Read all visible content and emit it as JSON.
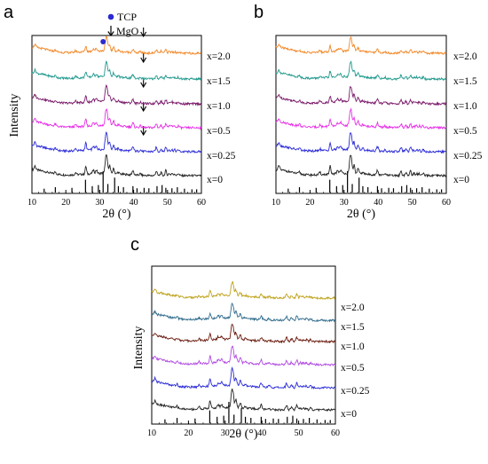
{
  "chart_data": [
    {
      "panel": "a",
      "type": "line",
      "xlabel": "2θ (°)",
      "ylabel": "Intensity",
      "xlim": [
        10,
        60
      ],
      "xticks": [
        "10",
        "20",
        "30",
        "40",
        "50",
        "60"
      ],
      "legend": [
        {
          "label": "TCP",
          "marker": "dot",
          "color": "#2a2ad0"
        },
        {
          "label": "MgO",
          "marker": "arrow",
          "color": "#000000"
        }
      ],
      "series": [
        {
          "name": "x=0",
          "color": "#222222"
        },
        {
          "name": "x=0.25",
          "color": "#2b2bd6"
        },
        {
          "name": "x=0.5",
          "color": "#e62ee6"
        },
        {
          "name": "x=1.0",
          "color": "#7a1a6a"
        },
        {
          "name": "x=1.5",
          "color": "#229a8e"
        },
        {
          "name": "x=2.0",
          "color": "#f2892a"
        }
      ],
      "tcp_marker_2theta": [
        31.0
      ],
      "mgo_marker_2theta": [
        42.9
      ]
    },
    {
      "panel": "b",
      "type": "line",
      "xlabel": "2θ (°)",
      "ylabel": "",
      "xlim": [
        10,
        60
      ],
      "xticks": [
        "10",
        "20",
        "30",
        "40",
        "50",
        "60"
      ],
      "series": [
        {
          "name": "x=0",
          "color": "#222222"
        },
        {
          "name": "x=0.25",
          "color": "#2b2bd6"
        },
        {
          "name": "x=0.5",
          "color": "#e62ee6"
        },
        {
          "name": "x=1.0",
          "color": "#7a1a6a"
        },
        {
          "name": "x=1.5",
          "color": "#229a8e"
        },
        {
          "name": "x=2.0",
          "color": "#f2892a"
        }
      ]
    },
    {
      "panel": "c",
      "type": "line",
      "xlabel": "2θ (°)",
      "ylabel": "Intensity",
      "xlim": [
        10,
        60
      ],
      "xticks": [
        "10",
        "20",
        "30",
        "40",
        "50",
        "60"
      ],
      "series": [
        {
          "name": "x=0",
          "color": "#222222"
        },
        {
          "name": "x=0.25",
          "color": "#2b2bd6"
        },
        {
          "name": "x=0.5",
          "color": "#b04ae0"
        },
        {
          "name": "x=1.0",
          "color": "#6a1a0e"
        },
        {
          "name": "x=1.5",
          "color": "#2f6b8c"
        },
        {
          "name": "x=2.0",
          "color": "#bfa21a"
        }
      ]
    }
  ],
  "reference_pattern": {
    "lines": [
      [
        13.6,
        0.18
      ],
      [
        16.9,
        0.25
      ],
      [
        21.8,
        0.22
      ],
      [
        25.8,
        0.6
      ],
      [
        27.8,
        0.3
      ],
      [
        29.6,
        0.35
      ],
      [
        31.0,
        1.0
      ],
      [
        32.4,
        0.4
      ],
      [
        34.4,
        0.7
      ],
      [
        35.5,
        0.3
      ],
      [
        37.0,
        0.25
      ],
      [
        39.8,
        0.3
      ],
      [
        41.0,
        0.2
      ],
      [
        43.1,
        0.22
      ],
      [
        44.5,
        0.2
      ],
      [
        46.9,
        0.3
      ],
      [
        48.4,
        0.35
      ],
      [
        49.5,
        0.22
      ],
      [
        51.3,
        0.2
      ],
      [
        52.9,
        0.25
      ],
      [
        55.0,
        0.18
      ],
      [
        57.2,
        0.15
      ],
      [
        58.6,
        0.15
      ]
    ]
  },
  "pattern_peaks": {
    "apatite_like": [
      [
        10.9,
        0.3,
        0.35
      ],
      [
        16.9,
        0.3,
        0.18
      ],
      [
        22.9,
        0.3,
        0.2
      ],
      [
        25.9,
        0.25,
        0.7
      ],
      [
        28.1,
        0.3,
        0.3
      ],
      [
        29.0,
        0.3,
        0.3
      ],
      [
        31.8,
        0.3,
        1.4
      ],
      [
        32.2,
        0.25,
        1.0
      ],
      [
        32.9,
        0.3,
        0.75
      ],
      [
        34.1,
        0.3,
        0.45
      ],
      [
        35.5,
        0.3,
        0.15
      ],
      [
        39.8,
        0.3,
        0.4
      ],
      [
        42.0,
        0.3,
        0.15
      ],
      [
        46.7,
        0.3,
        0.4
      ],
      [
        48.1,
        0.3,
        0.25
      ],
      [
        49.5,
        0.3,
        0.45
      ],
      [
        50.5,
        0.3,
        0.2
      ],
      [
        51.3,
        0.3,
        0.2
      ],
      [
        52.1,
        0.3,
        0.18
      ],
      [
        53.2,
        0.3,
        0.2
      ]
    ]
  }
}
